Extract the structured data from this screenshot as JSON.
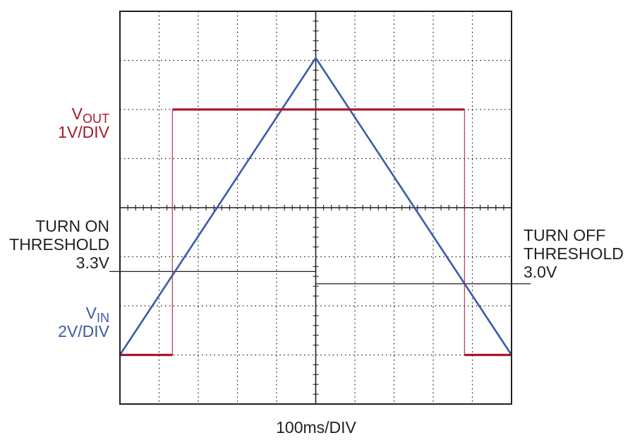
{
  "chart_data": {
    "type": "line",
    "title": "",
    "xlabel": "100ms/DIV",
    "ylabel": "",
    "grid": true,
    "divisions": {
      "x": 10,
      "y": 8
    },
    "xlim": [
      0,
      10
    ],
    "ylim": [
      -4,
      4
    ],
    "series": [
      {
        "name": "VOUT",
        "label_main": "V",
        "label_sub": "OUT",
        "scale": "1V/DIV",
        "color": "#a6192e",
        "x": [
          0,
          1.34,
          1.34,
          8.8,
          8.8,
          10
        ],
        "y": [
          -3,
          -3,
          2,
          2,
          -3,
          -3
        ]
      },
      {
        "name": "VIN",
        "label_main": "V",
        "label_sub": "IN",
        "scale": "2V/DIV",
        "color": "#3a5ba8",
        "x": [
          0,
          5,
          10
        ],
        "y": [
          -3,
          3.05,
          -3
        ]
      }
    ],
    "annotations": [
      {
        "id": "turn_on",
        "lines": [
          "TURN ON",
          "THRESHOLD",
          "3.3V"
        ],
        "level": -1.3,
        "x_start": 0,
        "x_end": 5
      },
      {
        "id": "turn_off",
        "lines": [
          "TURN OFF",
          "THRESHOLD",
          "3.0V"
        ],
        "level": -1.55,
        "x_start": 5,
        "x_end": 10
      }
    ]
  }
}
